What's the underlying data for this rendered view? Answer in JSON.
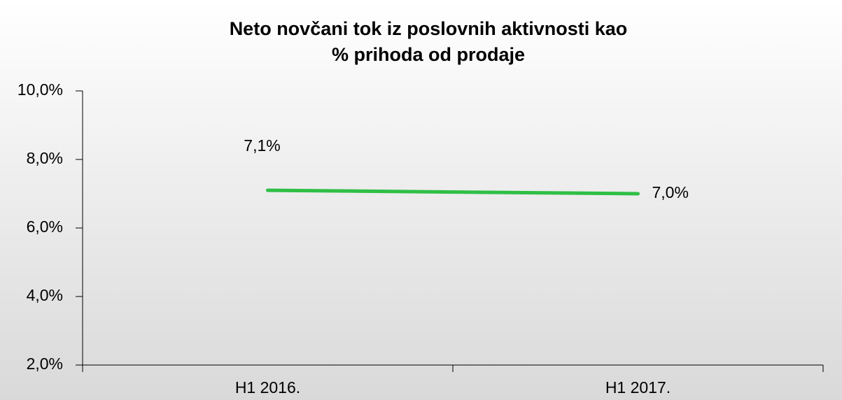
{
  "chart_data": {
    "type": "line",
    "title": [
      "Neto novčani tok iz poslovnih aktivnosti kao",
      "% prihoda od prodaje"
    ],
    "categories": [
      "H1 2016.",
      "H1 2017."
    ],
    "series": [
      {
        "name": null,
        "color": "#2fbf46",
        "values": [
          7.1,
          7.0
        ],
        "value_labels": [
          "7,1%",
          "7,0%"
        ]
      }
    ],
    "ylim": [
      2,
      10
    ],
    "yticks": [
      {
        "value": 2,
        "label": "2,0%"
      },
      {
        "value": 4,
        "label": "4,0%"
      },
      {
        "value": 6,
        "label": "6,0%"
      },
      {
        "value": 8,
        "label": "8,0%"
      },
      {
        "value": 10,
        "label": "10,0%"
      }
    ],
    "grid": false
  }
}
